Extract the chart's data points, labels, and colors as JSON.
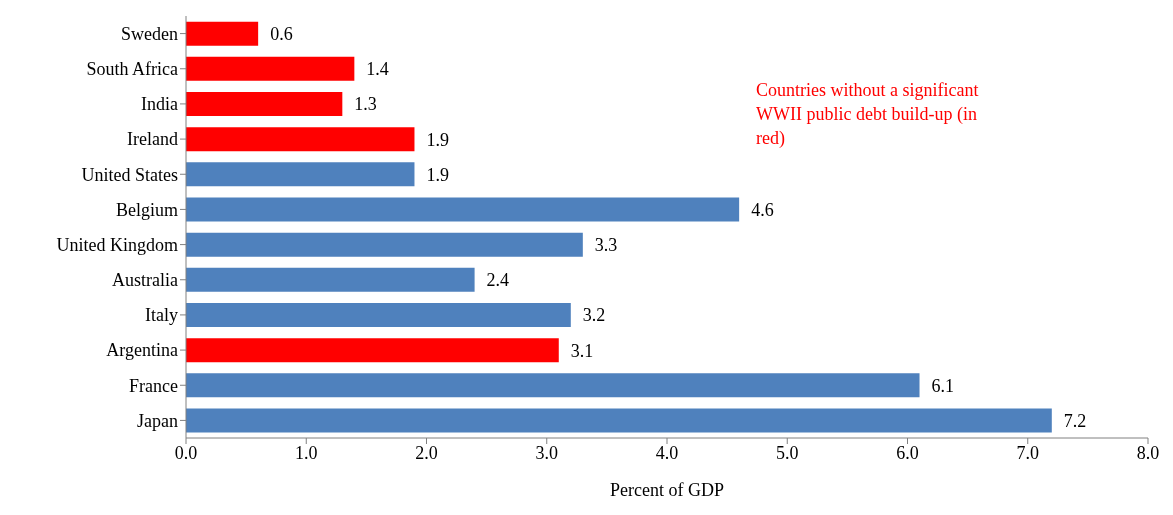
{
  "chart_data": {
    "type": "bar",
    "orientation": "horizontal",
    "categories": [
      "Sweden",
      "South Africa",
      "India",
      "Ireland",
      "United States",
      "Belgium",
      "United Kingdom",
      "Australia",
      "Italy",
      "Argentina",
      "France",
      "Japan"
    ],
    "values": [
      0.6,
      1.4,
      1.3,
      1.9,
      1.9,
      4.6,
      3.3,
      2.4,
      3.2,
      3.1,
      6.1,
      7.2
    ],
    "colors": [
      "#ff0000",
      "#ff0000",
      "#ff0000",
      "#ff0000",
      "#4f81bd",
      "#4f81bd",
      "#4f81bd",
      "#4f81bd",
      "#4f81bd",
      "#ff0000",
      "#4f81bd",
      "#4f81bd"
    ],
    "xlim": [
      0,
      8
    ],
    "xticks": [
      {
        "value": 0,
        "label": "0.0"
      },
      {
        "value": 1,
        "label": "1.0"
      },
      {
        "value": 2,
        "label": "2.0"
      },
      {
        "value": 3,
        "label": "3.0"
      },
      {
        "value": 4,
        "label": "4.0"
      },
      {
        "value": 5,
        "label": "5.0"
      },
      {
        "value": 6,
        "label": "6.0"
      },
      {
        "value": 7,
        "label": "7.0"
      },
      {
        "value": 8,
        "label": "8.0"
      }
    ],
    "xlabel": "Percent of GDP",
    "data_labels": true,
    "annotations": [
      "Countries without a significant WWII public debt build-up (in red)"
    ]
  }
}
